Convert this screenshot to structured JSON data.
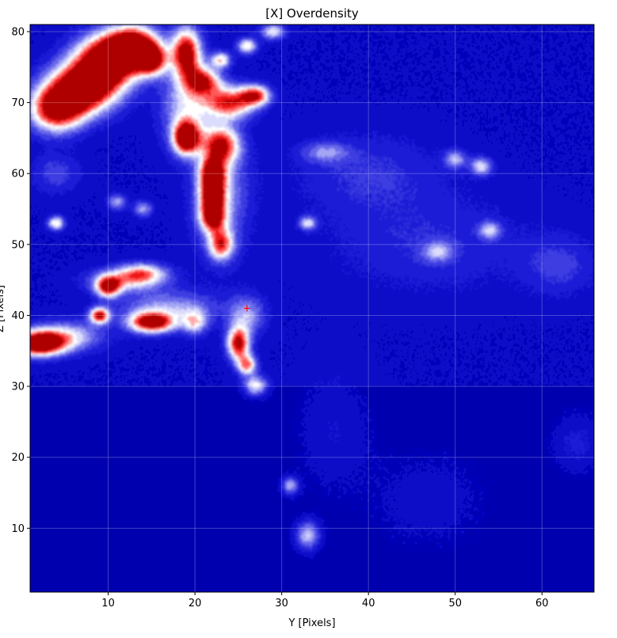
{
  "chart_data": {
    "type": "heatmap",
    "title": "[X] Overdensity",
    "xlabel": "Y [Pixels]",
    "ylabel": "Z [Pixels]",
    "xlim": [
      1,
      66
    ],
    "ylim": [
      1,
      81
    ],
    "xticks": [
      10,
      20,
      30,
      40,
      50,
      60
    ],
    "yticks": [
      10,
      20,
      30,
      40,
      50,
      60,
      70,
      80
    ],
    "grid": true,
    "colormap": "bwr",
    "colors": {
      "low": "#0000c8",
      "mid": "#ffffff",
      "high": "#cc0000"
    },
    "marker": {
      "symbol": "+",
      "x": 26,
      "y": 41,
      "color": "#ff0000"
    },
    "blobs": [
      {
        "x": 4,
        "y": 69,
        "sx": 2.2,
        "sy": 2.2,
        "a": 1.1
      },
      {
        "x": 7,
        "y": 72,
        "sx": 2.8,
        "sy": 2.5,
        "a": 1.3
      },
      {
        "x": 10,
        "y": 76,
        "sx": 2.6,
        "sy": 2.6,
        "a": 1.35
      },
      {
        "x": 13,
        "y": 78,
        "sx": 2.0,
        "sy": 2.0,
        "a": 1.2
      },
      {
        "x": 15,
        "y": 76,
        "sx": 1.2,
        "sy": 1.5,
        "a": 1.0
      },
      {
        "x": 19,
        "y": 77,
        "sx": 1.2,
        "sy": 2.5,
        "a": 1.15
      },
      {
        "x": 21,
        "y": 73,
        "sx": 1.4,
        "sy": 1.4,
        "a": 0.85
      },
      {
        "x": 19,
        "y": 65,
        "sx": 1.0,
        "sy": 1.5,
        "a": 1.3
      },
      {
        "x": 19,
        "y": 69,
        "sx": 2.0,
        "sy": 4.0,
        "a": 0.55
      },
      {
        "x": 24,
        "y": 70,
        "sx": 2.0,
        "sy": 1.6,
        "a": 0.95
      },
      {
        "x": 27,
        "y": 71,
        "sx": 1.2,
        "sy": 1.0,
        "a": 0.9
      },
      {
        "x": 23,
        "y": 64,
        "sx": 1.5,
        "sy": 1.8,
        "a": 0.9
      },
      {
        "x": 22,
        "y": 60,
        "sx": 1.0,
        "sy": 1.5,
        "a": 1.05
      },
      {
        "x": 22,
        "y": 57,
        "sx": 1.0,
        "sy": 1.5,
        "a": 0.95
      },
      {
        "x": 22,
        "y": 54,
        "sx": 1.0,
        "sy": 1.5,
        "a": 1.0
      },
      {
        "x": 23,
        "y": 50,
        "sx": 1.0,
        "sy": 1.5,
        "a": 0.8
      },
      {
        "x": 23,
        "y": 57,
        "sx": 2.2,
        "sy": 6.0,
        "a": 0.45
      },
      {
        "x": 2,
        "y": 36,
        "sx": 2.0,
        "sy": 1.2,
        "a": 1.3
      },
      {
        "x": 5,
        "y": 37,
        "sx": 3.0,
        "sy": 1.5,
        "a": 0.6
      },
      {
        "x": 9,
        "y": 40,
        "sx": 0.8,
        "sy": 0.8,
        "a": 1.05
      },
      {
        "x": 10,
        "y": 44,
        "sx": 1.0,
        "sy": 1.0,
        "a": 1.0
      },
      {
        "x": 15,
        "y": 39,
        "sx": 1.8,
        "sy": 1.0,
        "a": 1.15
      },
      {
        "x": 12,
        "y": 45,
        "sx": 3.0,
        "sy": 1.2,
        "a": 0.55
      },
      {
        "x": 14,
        "y": 46,
        "sx": 2.0,
        "sy": 1.0,
        "a": 0.6
      },
      {
        "x": 20,
        "y": 39,
        "sx": 1.0,
        "sy": 1.2,
        "a": 0.55
      },
      {
        "x": 17,
        "y": 41,
        "sx": 4.0,
        "sy": 1.8,
        "a": 0.45
      },
      {
        "x": 25,
        "y": 36,
        "sx": 0.9,
        "sy": 1.6,
        "a": 1.1
      },
      {
        "x": 26,
        "y": 33,
        "sx": 0.8,
        "sy": 1.0,
        "a": 0.8
      },
      {
        "x": 27,
        "y": 30,
        "sx": 1.0,
        "sy": 1.0,
        "a": 0.65
      },
      {
        "x": 26,
        "y": 40,
        "sx": 1.5,
        "sy": 2.0,
        "a": 0.45
      },
      {
        "x": 31,
        "y": 16,
        "sx": 0.7,
        "sy": 0.9,
        "a": 0.55
      },
      {
        "x": 33,
        "y": 9,
        "sx": 1.0,
        "sy": 1.5,
        "a": 0.6
      },
      {
        "x": 4,
        "y": 53,
        "sx": 0.7,
        "sy": 0.7,
        "a": 0.7
      },
      {
        "x": 33,
        "y": 53,
        "sx": 0.7,
        "sy": 0.7,
        "a": 0.55
      },
      {
        "x": 35,
        "y": 63,
        "sx": 2.0,
        "sy": 1.0,
        "a": 0.35
      },
      {
        "x": 53,
        "y": 61,
        "sx": 0.9,
        "sy": 0.9,
        "a": 0.55
      },
      {
        "x": 50,
        "y": 62,
        "sx": 0.9,
        "sy": 0.9,
        "a": 0.45
      },
      {
        "x": 54,
        "y": 52,
        "sx": 0.9,
        "sy": 0.9,
        "a": 0.45
      },
      {
        "x": 48,
        "y": 49,
        "sx": 1.2,
        "sy": 1.0,
        "a": 0.4
      },
      {
        "x": 29,
        "y": 80,
        "sx": 1.0,
        "sy": 0.8,
        "a": 0.6
      },
      {
        "x": 26,
        "y": 78,
        "sx": 0.8,
        "sy": 0.8,
        "a": 0.7
      },
      {
        "x": 23,
        "y": 76,
        "sx": 0.8,
        "sy": 0.8,
        "a": 0.7
      },
      {
        "x": 11,
        "y": 56,
        "sx": 0.8,
        "sy": 0.8,
        "a": 0.45
      },
      {
        "x": 14,
        "y": 55,
        "sx": 0.8,
        "sy": 0.8,
        "a": 0.45
      },
      {
        "x": 4,
        "y": 60,
        "sx": 2.0,
        "sy": 2.0,
        "a": 0.25
      },
      {
        "x": 40,
        "y": 60,
        "sx": 6.0,
        "sy": 4.0,
        "a": 0.2
      },
      {
        "x": 47,
        "y": 50,
        "sx": 8.0,
        "sy": 5.0,
        "a": 0.18
      },
      {
        "x": 62,
        "y": 47,
        "sx": 3.0,
        "sy": 3.0,
        "a": 0.22
      },
      {
        "x": 36,
        "y": 24,
        "sx": 3.0,
        "sy": 6.0,
        "a": 0.15
      },
      {
        "x": 47,
        "y": 14,
        "sx": 5.0,
        "sy": 5.0,
        "a": 0.12
      },
      {
        "x": 64,
        "y": 22,
        "sx": 2.0,
        "sy": 3.0,
        "a": 0.2
      }
    ]
  }
}
